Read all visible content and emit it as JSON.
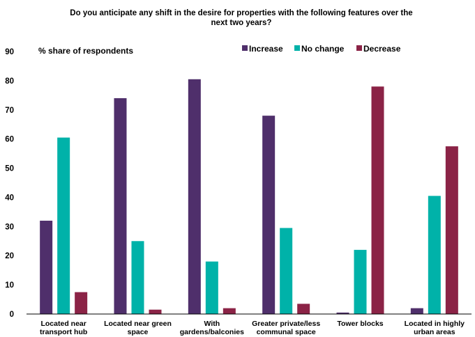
{
  "chart_data": {
    "type": "bar",
    "title_lines": [
      "Do you anticipate any shift in the desire for properties with the following features over the",
      "next two years?"
    ],
    "ylabel": "% share of respondents",
    "xlabel": "",
    "ylim": [
      0,
      90
    ],
    "yticks": [
      0,
      10,
      20,
      30,
      40,
      50,
      60,
      70,
      80,
      90
    ],
    "grid": false,
    "legend_position": "top-right",
    "categories": [
      [
        "Located near",
        "transport hub"
      ],
      [
        "Located near green",
        "space"
      ],
      [
        "With",
        "gardens/balconies"
      ],
      [
        "Greater private/less",
        "communal space"
      ],
      [
        "Tower blocks"
      ],
      [
        "Located in highly",
        "urban areas"
      ]
    ],
    "series": [
      {
        "name": "Increase",
        "color": "#4f2f6b",
        "values": [
          32,
          74,
          80.5,
          68,
          0.5,
          2
        ]
      },
      {
        "name": "No change",
        "color": "#00b2a9",
        "values": [
          60.5,
          25,
          18,
          29.5,
          22,
          40.5
        ]
      },
      {
        "name": "Decrease",
        "color": "#8b2346",
        "values": [
          7.5,
          1.5,
          2,
          3.5,
          78,
          57.5
        ]
      }
    ]
  }
}
